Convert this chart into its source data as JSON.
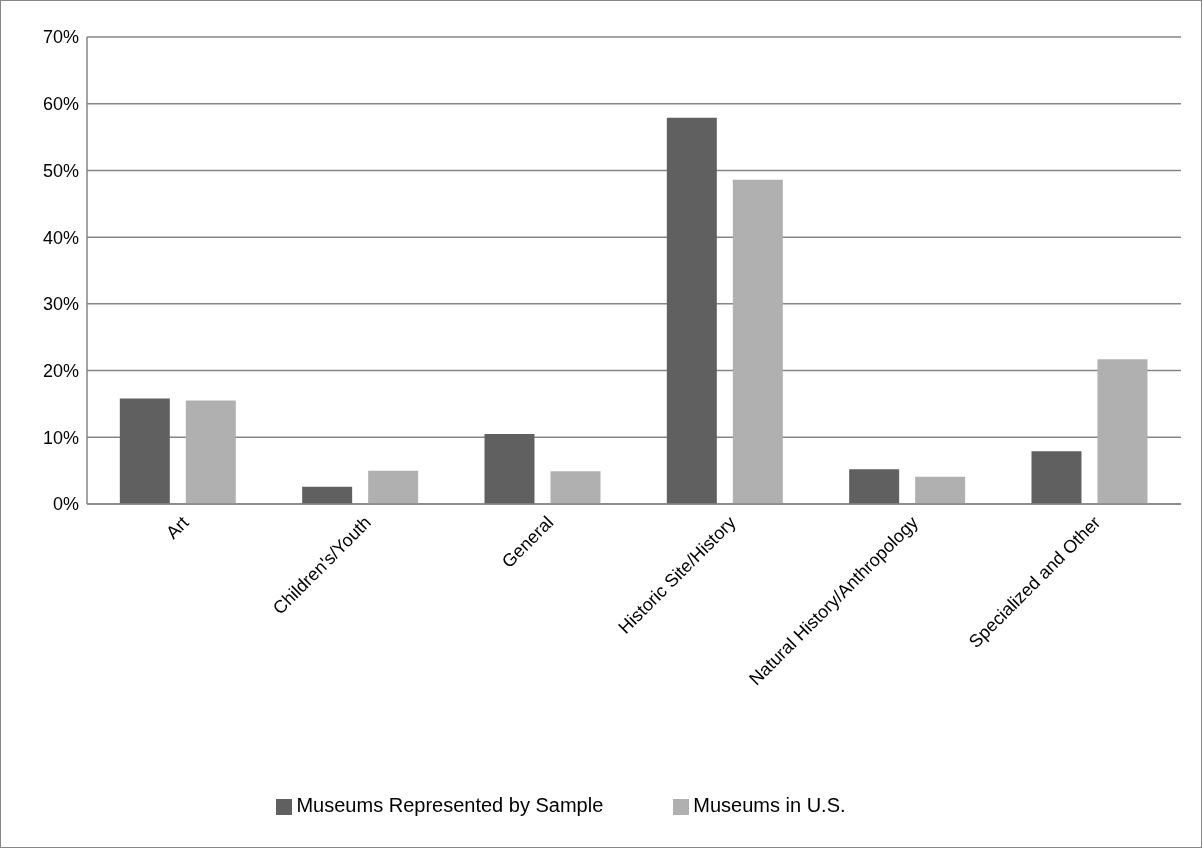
{
  "chart_data": {
    "type": "bar",
    "categories": [
      "Art",
      "Children's/Youth",
      "General",
      "Historic Site/History",
      "Natural History/Anthropology",
      "Specialized and Other"
    ],
    "series": [
      {
        "name": "Museums Represented by Sample",
        "color": "#606060",
        "values": [
          15.8,
          2.6,
          10.5,
          57.9,
          5.2,
          7.9
        ]
      },
      {
        "name": "Museums in U.S.",
        "color": "#b0b0b0",
        "values": [
          15.5,
          5.0,
          4.9,
          48.6,
          4.1,
          21.7
        ]
      }
    ],
    "ylim": [
      0,
      70
    ],
    "yticks": [
      {
        "value": 0,
        "label": "0%"
      },
      {
        "value": 10,
        "label": "10%"
      },
      {
        "value": 20,
        "label": "20%"
      },
      {
        "value": 30,
        "label": "30%"
      },
      {
        "value": 40,
        "label": "40%"
      },
      {
        "value": 50,
        "label": "50%"
      },
      {
        "value": 60,
        "label": "60%"
      },
      {
        "value": 70,
        "label": "70%"
      }
    ],
    "grid": "y",
    "legend": "bottom"
  }
}
